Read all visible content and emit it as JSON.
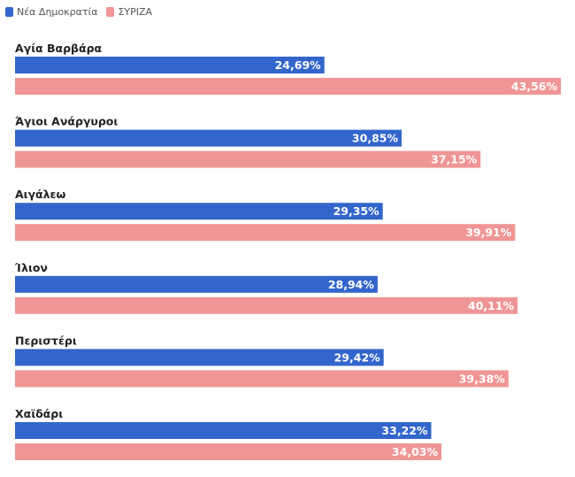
{
  "chart_data": {
    "type": "bar",
    "orientation": "horizontal",
    "categories": [
      "Αγία Βαρβάρα",
      "Άγιοι Ανάργυροι",
      "Αιγάλεω",
      "Ίλιον",
      "Περιστέρι",
      "Χαϊδάρι"
    ],
    "series": [
      {
        "name": "Νέα Δημοκρατία",
        "color": "#3366cc",
        "values": [
          24.69,
          30.85,
          29.35,
          28.94,
          29.42,
          33.22
        ],
        "labels": [
          "24,69%",
          "30,85%",
          "29,35%",
          "28,94%",
          "29,42%",
          "33,22%"
        ]
      },
      {
        "name": "ΣΥΡΙΖΑ",
        "color": "#f09595",
        "values": [
          43.56,
          37.15,
          39.91,
          40.11,
          39.38,
          34.03
        ],
        "labels": [
          "43,56%",
          "37,15%",
          "39,91%",
          "40,11%",
          "39,38%",
          "34,03%"
        ]
      }
    ],
    "xlim": [
      0,
      43.56
    ],
    "legend_position": "top-left",
    "grid": false
  }
}
